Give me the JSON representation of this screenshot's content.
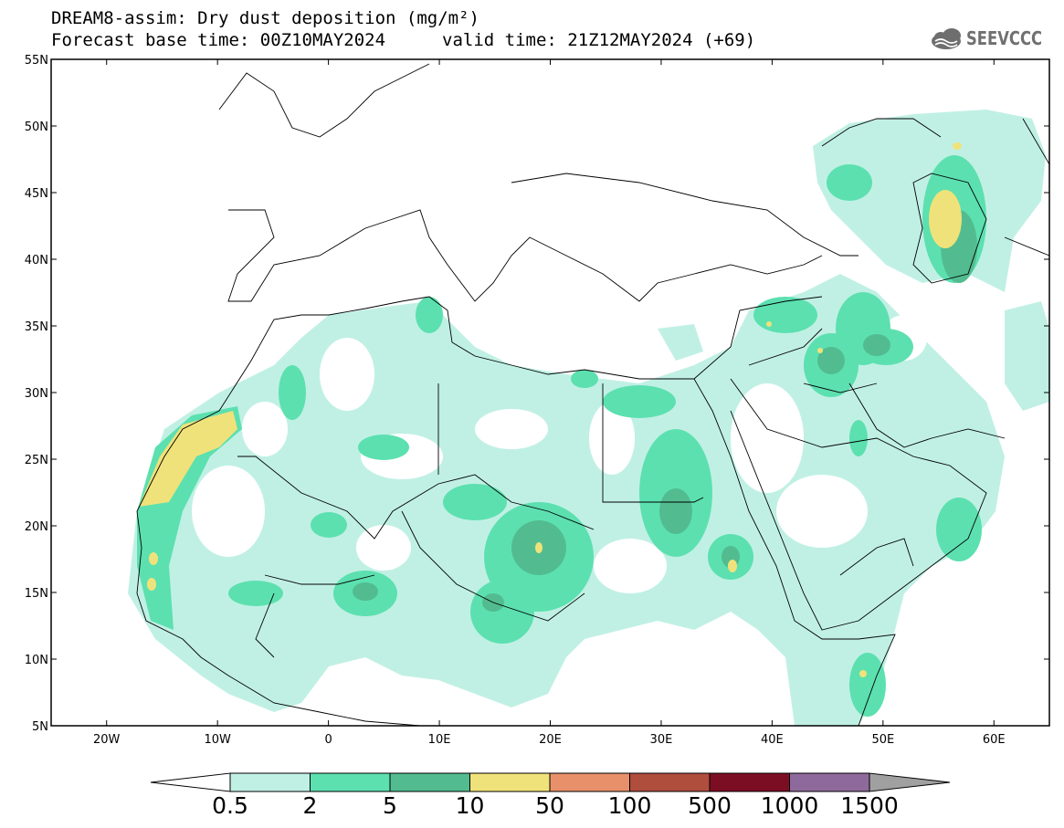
{
  "title": {
    "line1": "DREAM8-assim: Dry dust deposition (mg/m²)",
    "line2": "Forecast base time: 00Z10MAY2024",
    "valid": "valid time: 21Z12MAY2024 (+69)"
  },
  "logo": {
    "text": "SEEVCCC",
    "icon": "cloud-icon"
  },
  "map": {
    "region": "North Africa, Europe and Middle East",
    "lon_range": [
      -25,
      65
    ],
    "lat_range": [
      5,
      55
    ],
    "lat_ticks": [
      {
        "value": 55,
        "label": "55N"
      },
      {
        "value": 50,
        "label": "50N"
      },
      {
        "value": 45,
        "label": "45N"
      },
      {
        "value": 40,
        "label": "40N"
      },
      {
        "value": 35,
        "label": "35N"
      },
      {
        "value": 30,
        "label": "30N"
      },
      {
        "value": 25,
        "label": "25N"
      },
      {
        "value": 20,
        "label": "20N"
      },
      {
        "value": 15,
        "label": "15N"
      },
      {
        "value": 10,
        "label": "10N"
      },
      {
        "value": 5,
        "label": "5N"
      }
    ],
    "lon_ticks": [
      {
        "value": -20,
        "label": "20W"
      },
      {
        "value": -10,
        "label": "10W"
      },
      {
        "value": 0,
        "label": "0"
      },
      {
        "value": 10,
        "label": "10E"
      },
      {
        "value": 20,
        "label": "20E"
      },
      {
        "value": 30,
        "label": "30E"
      },
      {
        "value": 40,
        "label": "40E"
      },
      {
        "value": 50,
        "label": "50E"
      },
      {
        "value": 60,
        "label": "60E"
      }
    ]
  },
  "colorbar": {
    "labels": [
      "0.5",
      "2",
      "5",
      "10",
      "50",
      "100",
      "500",
      "1000",
      "1500"
    ],
    "colors": [
      "#c0f0e4",
      "#5ce0b0",
      "#52bc90",
      "#f0e27a",
      "#e8906a",
      "#b04e3e",
      "#7c0e24",
      "#8e6a9c"
    ],
    "under_color": "#ffffff",
    "over_color": "#a0a0a0"
  }
}
